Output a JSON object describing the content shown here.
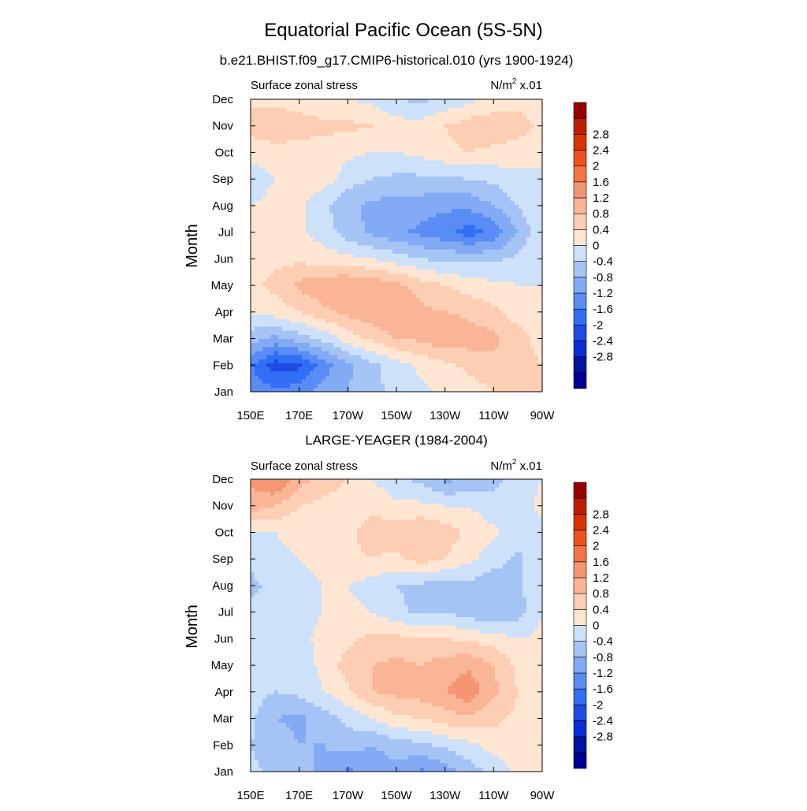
{
  "title": "Equatorial Pacific Ocean (5S-5N)",
  "colormap": [
    "#000096",
    "#0014a0",
    "#0a2fd2",
    "#1e4be6",
    "#326ef5",
    "#5a8cf5",
    "#82aaf5",
    "#a5c3f5",
    "#cde1fa",
    "#ffe6d2",
    "#fdcdb4",
    "#fab496",
    "#f59673",
    "#f57346",
    "#f0501e",
    "#dc3200",
    "#be1e00",
    "#960000"
  ],
  "chart_data": [
    {
      "type": "heatmap",
      "title": "b.e21.BHIST.f09_g17.CMIP6-historical.010 (yrs 1900-1924)",
      "left_label": "Surface zonal stress",
      "units": "N/m",
      "units_sup": "2",
      "units_scale": " x.01",
      "ylabel": "Month",
      "x_ticks": [
        "150E",
        "170E",
        "170W",
        "150W",
        "130W",
        "110W",
        "90W"
      ],
      "y_ticks": [
        "Jan",
        "Feb",
        "Mar",
        "Apr",
        "May",
        "Jun",
        "Jul",
        "Aug",
        "Sep",
        "Oct",
        "Nov",
        "Dec"
      ],
      "levels": [
        "-2.8",
        "-2.4",
        "-2",
        "-1.6",
        "-1.2",
        "-0.8",
        "-0.4",
        "0",
        "0.4",
        "0.8",
        "1.2",
        "1.6",
        "2",
        "2.4",
        "2.8"
      ],
      "x": [
        150,
        160,
        170,
        180,
        190,
        200,
        210,
        220,
        230,
        240,
        250,
        260,
        270
      ],
      "values": [
        [
          -1.3,
          -1.5,
          -1.4,
          -1.0,
          -0.8,
          -0.5,
          -0.3,
          -0.1,
          0.1,
          0.2,
          0.4,
          0.6,
          0.4
        ],
        [
          -1.6,
          -2.2,
          -2.1,
          -1.4,
          -0.9,
          -0.5,
          -0.2,
          0.1,
          0.3,
          0.5,
          0.7,
          0.6,
          0.4
        ],
        [
          -0.6,
          -0.9,
          -0.6,
          -0.3,
          0.2,
          0.5,
          0.8,
          0.9,
          1.1,
          1.0,
          0.9,
          0.6,
          0.2
        ],
        [
          0.0,
          0.2,
          0.4,
          0.7,
          0.9,
          1.1,
          1.2,
          0.9,
          0.8,
          0.7,
          0.5,
          0.2,
          0.0
        ],
        [
          0.3,
          0.5,
          0.9,
          1.1,
          1.2,
          1.1,
          0.9,
          0.6,
          0.4,
          0.2,
          0.1,
          0.0,
          0.0
        ],
        [
          0.2,
          0.3,
          0.3,
          0.2,
          0.1,
          0.0,
          -0.2,
          -0.4,
          -0.5,
          -0.5,
          -0.5,
          -0.3,
          0.0
        ],
        [
          0.1,
          0.1,
          0.1,
          -0.2,
          -0.6,
          -0.9,
          -1.1,
          -1.3,
          -1.5,
          -1.8,
          -1.5,
          -0.8,
          0.0
        ],
        [
          0.0,
          0.1,
          0.1,
          -0.3,
          -0.7,
          -0.9,
          -1.0,
          -1.0,
          -1.1,
          -1.1,
          -0.8,
          -0.4,
          0.0
        ],
        [
          -0.2,
          0.0,
          0.2,
          0.2,
          -0.2,
          -0.4,
          -0.5,
          -0.5,
          -0.5,
          -0.4,
          -0.3,
          -0.1,
          0.0
        ],
        [
          0.1,
          0.2,
          0.2,
          0.2,
          0.1,
          0.0,
          0.0,
          0.1,
          0.3,
          0.4,
          0.3,
          0.2,
          0.0
        ],
        [
          0.6,
          0.8,
          0.6,
          0.5,
          0.5,
          0.4,
          0.2,
          0.2,
          0.4,
          0.6,
          0.7,
          0.6,
          0.3
        ],
        [
          0.3,
          0.2,
          0.2,
          0.1,
          0.0,
          -0.1,
          -0.4,
          -0.5,
          -0.3,
          -0.1,
          0.1,
          0.2,
          0.3
        ]
      ]
    },
    {
      "type": "heatmap",
      "title": "LARGE-YEAGER (1984-2004)",
      "left_label": "Surface zonal stress",
      "units": "N/m",
      "units_sup": "2",
      "units_scale": " x.01",
      "ylabel": "Month",
      "x_ticks": [
        "150E",
        "170E",
        "170W",
        "150W",
        "130W",
        "110W",
        "90W"
      ],
      "y_ticks": [
        "Jan",
        "Feb",
        "Mar",
        "Apr",
        "May",
        "Jun",
        "Jul",
        "Aug",
        "Sep",
        "Oct",
        "Nov",
        "Dec"
      ],
      "levels": [
        "-2.8",
        "-2.4",
        "-2",
        "-1.6",
        "-1.2",
        "-0.8",
        "-0.4",
        "0",
        "0.4",
        "0.8",
        "1.2",
        "1.6",
        "2",
        "2.4",
        "2.8"
      ],
      "x": [
        150,
        160,
        170,
        180,
        190,
        200,
        210,
        220,
        230,
        240,
        250,
        260,
        270
      ],
      "values": [
        [
          -0.3,
          -0.5,
          -0.6,
          -0.9,
          -1.3,
          -1.1,
          -0.9,
          -1.3,
          -1.0,
          -0.6,
          -0.3,
          0.1,
          0.2
        ],
        [
          -0.4,
          -0.6,
          -0.8,
          -0.8,
          -0.6,
          -0.8,
          -0.6,
          -0.5,
          -0.3,
          -0.1,
          0.2,
          0.3,
          0.2
        ],
        [
          -0.3,
          -0.8,
          -0.9,
          -0.6,
          -0.3,
          0.0,
          0.3,
          0.4,
          0.6,
          0.7,
          0.5,
          0.3,
          0.2
        ],
        [
          -0.2,
          -0.4,
          -0.3,
          0.0,
          0.3,
          0.8,
          0.9,
          1.0,
          1.2,
          1.5,
          0.9,
          0.4,
          0.2
        ],
        [
          -0.1,
          -0.3,
          -0.2,
          0.1,
          0.6,
          0.8,
          0.9,
          0.8,
          1.0,
          1.1,
          0.8,
          0.3,
          0.1
        ],
        [
          -0.2,
          -0.2,
          -0.1,
          0.1,
          0.3,
          0.5,
          0.5,
          0.5,
          0.4,
          0.3,
          0.2,
          0.0,
          0.1
        ],
        [
          -0.3,
          -0.2,
          -0.1,
          0.0,
          0.1,
          0.0,
          -0.3,
          -0.5,
          -0.4,
          -0.6,
          -0.8,
          -0.6,
          0.0
        ],
        [
          -0.5,
          -0.3,
          -0.1,
          0.0,
          0.0,
          -0.2,
          -0.4,
          -0.5,
          -0.6,
          -0.5,
          -0.7,
          -0.5,
          0.0
        ],
        [
          -0.3,
          -0.1,
          0.0,
          0.1,
          0.3,
          0.4,
          0.3,
          0.6,
          0.4,
          0.1,
          -0.2,
          -0.5,
          -0.1
        ],
        [
          -0.1,
          0.0,
          0.1,
          0.1,
          0.3,
          0.6,
          0.6,
          0.8,
          0.6,
          0.3,
          0.1,
          -0.2,
          -0.1
        ],
        [
          1.0,
          0.8,
          0.4,
          0.3,
          0.2,
          0.3,
          0.1,
          0.1,
          0.0,
          0.0,
          -0.3,
          -0.2,
          0.1
        ],
        [
          1.3,
          1.7,
          1.0,
          0.6,
          0.4,
          0.0,
          -0.3,
          -0.5,
          -0.9,
          -0.8,
          -0.5,
          -0.2,
          0.0
        ]
      ]
    }
  ]
}
